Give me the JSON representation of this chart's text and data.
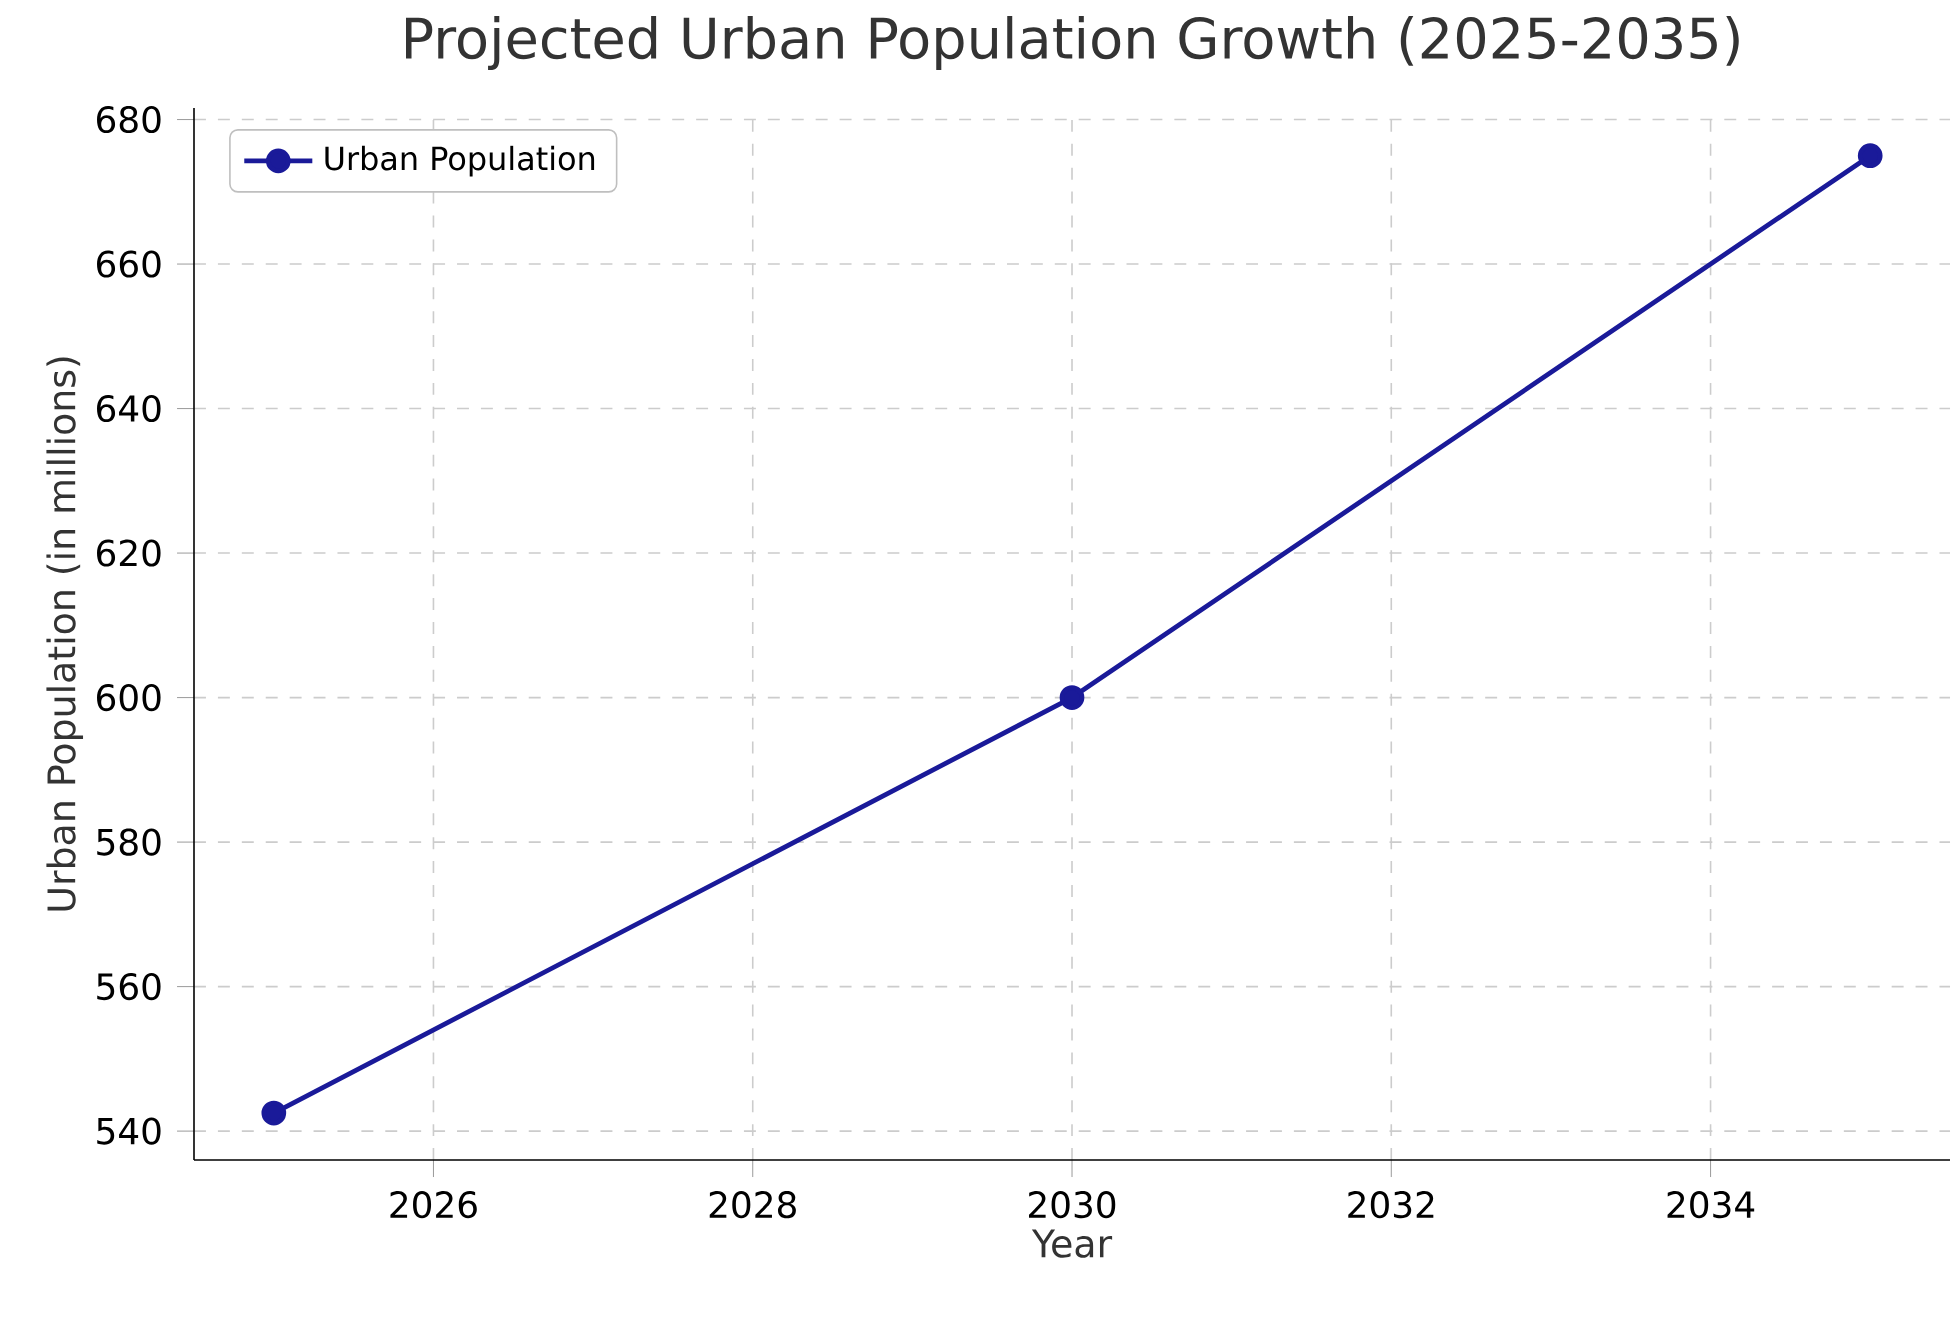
{
  "chart_data": {
    "type": "line",
    "title": "Projected Urban Population Growth (2025-2035)",
    "xlabel": "Year",
    "ylabel": "Urban Population (in millions)",
    "x": [
      2025,
      2030,
      2035
    ],
    "series": [
      {
        "name": "Urban Population",
        "color": "#1a1a99",
        "values": [
          542.5,
          600,
          675
        ]
      }
    ],
    "xlim": [
      2024.5,
      2035.5
    ],
    "ylim": [
      536,
      681.6
    ],
    "xticks": [
      2026,
      2028,
      2030,
      2032,
      2034
    ],
    "yticks": [
      540,
      560,
      580,
      600,
      620,
      640,
      660,
      680
    ],
    "grid": true,
    "legend": "top left",
    "marker": "circle",
    "line_style": "solid"
  }
}
